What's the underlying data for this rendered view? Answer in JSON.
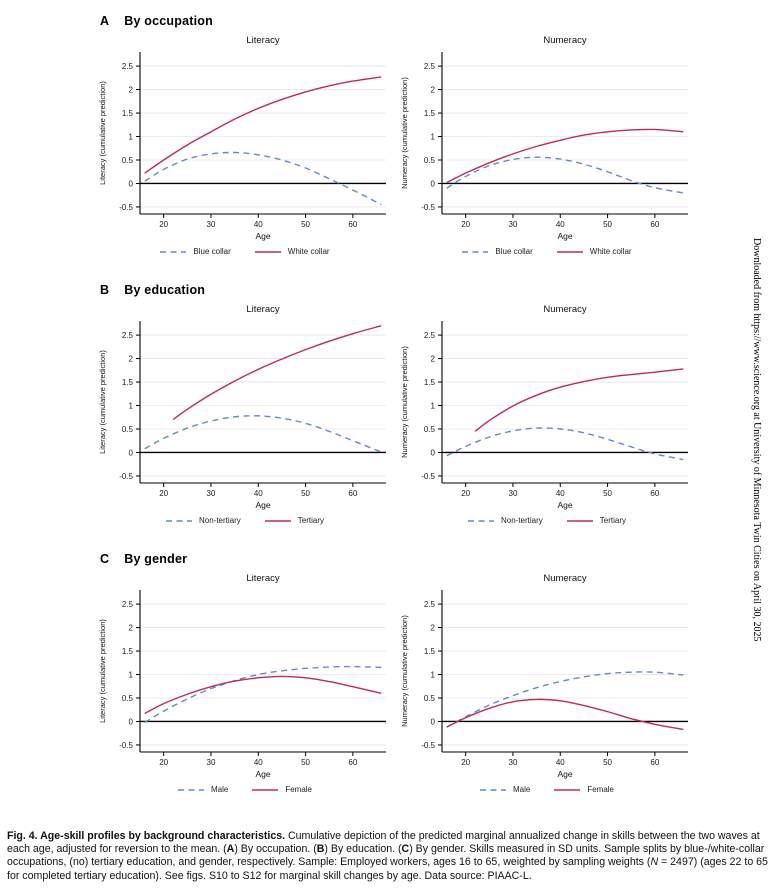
{
  "figure": {
    "panels": [
      {
        "letter": "A",
        "title": "By occupation"
      },
      {
        "letter": "B",
        "title": "By education"
      },
      {
        "letter": "C",
        "title": "By gender"
      }
    ]
  },
  "colors": {
    "series_blue": "#5b8ad6",
    "series_red": "#be2b55",
    "grid": "#e6e6e6",
    "axis": "#000000",
    "zero_line": "#000000"
  },
  "chart_data": [
    {
      "type": "line",
      "panel": "A",
      "title": "Literacy",
      "xlabel": "Age",
      "ylabel": "Literacy (cumulative prediction)",
      "xlim": [
        15,
        67
      ],
      "ylim": [
        -0.65,
        2.8
      ],
      "xticks": [
        20,
        30,
        40,
        50,
        60
      ],
      "yticks": [
        -0.5,
        0,
        0.5,
        1,
        1.5,
        2,
        2.5
      ],
      "grid": true,
      "legend_position": "bottom",
      "series": [
        {
          "name": "Blue collar",
          "style": "dashed",
          "color": "#5b8ad6",
          "points": [
            [
              16,
              0.05
            ],
            [
              20,
              0.3
            ],
            [
              25,
              0.52
            ],
            [
              30,
              0.63
            ],
            [
              35,
              0.66
            ],
            [
              40,
              0.61
            ],
            [
              45,
              0.5
            ],
            [
              50,
              0.33
            ],
            [
              55,
              0.1
            ],
            [
              60,
              -0.14
            ],
            [
              66,
              -0.45
            ]
          ]
        },
        {
          "name": "White collar",
          "style": "solid",
          "color": "#be2b55",
          "points": [
            [
              16,
              0.22
            ],
            [
              20,
              0.5
            ],
            [
              25,
              0.82
            ],
            [
              30,
              1.1
            ],
            [
              35,
              1.37
            ],
            [
              40,
              1.6
            ],
            [
              45,
              1.79
            ],
            [
              50,
              1.95
            ],
            [
              55,
              2.08
            ],
            [
              60,
              2.18
            ],
            [
              66,
              2.27
            ]
          ]
        }
      ]
    },
    {
      "type": "line",
      "panel": "A",
      "title": "Numeracy",
      "xlabel": "Age",
      "ylabel": "Numeracy (cumulative prediction)",
      "xlim": [
        15,
        67
      ],
      "ylim": [
        -0.65,
        2.8
      ],
      "xticks": [
        20,
        30,
        40,
        50,
        60
      ],
      "yticks": [
        -0.5,
        0,
        0.5,
        1,
        1.5,
        2,
        2.5
      ],
      "grid": true,
      "legend_position": "bottom",
      "series": [
        {
          "name": "Blue collar",
          "style": "dashed",
          "color": "#5b8ad6",
          "points": [
            [
              16,
              -0.1
            ],
            [
              20,
              0.15
            ],
            [
              25,
              0.38
            ],
            [
              30,
              0.51
            ],
            [
              35,
              0.56
            ],
            [
              40,
              0.52
            ],
            [
              45,
              0.41
            ],
            [
              50,
              0.25
            ],
            [
              55,
              0.06
            ],
            [
              60,
              -0.09
            ],
            [
              66,
              -0.2
            ]
          ]
        },
        {
          "name": "White collar",
          "style": "solid",
          "color": "#be2b55",
          "points": [
            [
              16,
              0.02
            ],
            [
              20,
              0.22
            ],
            [
              25,
              0.44
            ],
            [
              30,
              0.63
            ],
            [
              35,
              0.79
            ],
            [
              40,
              0.92
            ],
            [
              45,
              1.03
            ],
            [
              50,
              1.1
            ],
            [
              55,
              1.14
            ],
            [
              60,
              1.15
            ],
            [
              66,
              1.1
            ]
          ]
        }
      ]
    },
    {
      "type": "line",
      "panel": "B",
      "title": "Literacy",
      "xlabel": "Age",
      "ylabel": "Literacy (cumulative prediction)",
      "xlim": [
        15,
        67
      ],
      "ylim": [
        -0.65,
        2.8
      ],
      "xticks": [
        20,
        30,
        40,
        50,
        60
      ],
      "yticks": [
        -0.5,
        0,
        0.5,
        1,
        1.5,
        2,
        2.5
      ],
      "grid": true,
      "legend_position": "bottom",
      "series": [
        {
          "name": "Non-tertiary",
          "style": "dashed",
          "color": "#5b8ad6",
          "points": [
            [
              16,
              0.08
            ],
            [
              20,
              0.3
            ],
            [
              25,
              0.52
            ],
            [
              30,
              0.67
            ],
            [
              35,
              0.76
            ],
            [
              40,
              0.78
            ],
            [
              45,
              0.73
            ],
            [
              50,
              0.62
            ],
            [
              55,
              0.45
            ],
            [
              60,
              0.25
            ],
            [
              66,
              0.01
            ]
          ]
        },
        {
          "name": "Tertiary",
          "style": "solid",
          "color": "#be2b55",
          "points": [
            [
              22,
              0.7
            ],
            [
              25,
              0.92
            ],
            [
              30,
              1.24
            ],
            [
              35,
              1.52
            ],
            [
              40,
              1.77
            ],
            [
              45,
              1.99
            ],
            [
              50,
              2.19
            ],
            [
              55,
              2.37
            ],
            [
              60,
              2.53
            ],
            [
              66,
              2.7
            ]
          ]
        }
      ]
    },
    {
      "type": "line",
      "panel": "B",
      "title": "Numeracy",
      "xlabel": "Age",
      "ylabel": "Numeracy (cumulative prediction)",
      "xlim": [
        15,
        67
      ],
      "ylim": [
        -0.65,
        2.8
      ],
      "xticks": [
        20,
        30,
        40,
        50,
        60
      ],
      "yticks": [
        -0.5,
        0,
        0.5,
        1,
        1.5,
        2,
        2.5
      ],
      "grid": true,
      "legend_position": "bottom",
      "series": [
        {
          "name": "Non-tertiary",
          "style": "dashed",
          "color": "#5b8ad6",
          "points": [
            [
              16,
              -0.07
            ],
            [
              20,
              0.13
            ],
            [
              25,
              0.33
            ],
            [
              30,
              0.46
            ],
            [
              35,
              0.52
            ],
            [
              40,
              0.5
            ],
            [
              45,
              0.42
            ],
            [
              50,
              0.28
            ],
            [
              55,
              0.12
            ],
            [
              60,
              -0.03
            ],
            [
              66,
              -0.15
            ]
          ]
        },
        {
          "name": "Tertiary",
          "style": "solid",
          "color": "#be2b55",
          "points": [
            [
              22,
              0.45
            ],
            [
              25,
              0.68
            ],
            [
              30,
              0.99
            ],
            [
              35,
              1.22
            ],
            [
              40,
              1.39
            ],
            [
              45,
              1.51
            ],
            [
              50,
              1.6
            ],
            [
              55,
              1.66
            ],
            [
              60,
              1.71
            ],
            [
              66,
              1.78
            ]
          ]
        }
      ]
    },
    {
      "type": "line",
      "panel": "C",
      "title": "Literacy",
      "xlabel": "Age",
      "ylabel": "Literacy (cumulative prediction)",
      "xlim": [
        15,
        67
      ],
      "ylim": [
        -0.65,
        2.8
      ],
      "xticks": [
        20,
        30,
        40,
        50,
        60
      ],
      "yticks": [
        -0.5,
        0,
        0.5,
        1,
        1.5,
        2,
        2.5
      ],
      "grid": true,
      "legend_position": "bottom",
      "series": [
        {
          "name": "Male",
          "style": "dashed",
          "color": "#5b8ad6",
          "points": [
            [
              16,
              -0.02
            ],
            [
              20,
              0.22
            ],
            [
              25,
              0.48
            ],
            [
              30,
              0.7
            ],
            [
              35,
              0.87
            ],
            [
              40,
              1.0
            ],
            [
              45,
              1.08
            ],
            [
              50,
              1.13
            ],
            [
              55,
              1.16
            ],
            [
              60,
              1.17
            ],
            [
              66,
              1.15
            ]
          ]
        },
        {
          "name": "Female",
          "style": "solid",
          "color": "#be2b55",
          "points": [
            [
              16,
              0.17
            ],
            [
              20,
              0.38
            ],
            [
              25,
              0.58
            ],
            [
              30,
              0.74
            ],
            [
              35,
              0.86
            ],
            [
              40,
              0.93
            ],
            [
              45,
              0.96
            ],
            [
              50,
              0.93
            ],
            [
              55,
              0.85
            ],
            [
              60,
              0.74
            ],
            [
              66,
              0.6
            ]
          ]
        }
      ]
    },
    {
      "type": "line",
      "panel": "C",
      "title": "Numeracy",
      "xlabel": "Age",
      "ylabel": "Numeracy (cumulative prediction)",
      "xlim": [
        15,
        67
      ],
      "ylim": [
        -0.65,
        2.8
      ],
      "xticks": [
        20,
        30,
        40,
        50,
        60
      ],
      "yticks": [
        -0.5,
        0,
        0.5,
        1,
        1.5,
        2,
        2.5
      ],
      "grid": true,
      "legend_position": "bottom",
      "series": [
        {
          "name": "Male",
          "style": "dashed",
          "color": "#5b8ad6",
          "points": [
            [
              16,
              -0.12
            ],
            [
              20,
              0.1
            ],
            [
              25,
              0.35
            ],
            [
              30,
              0.55
            ],
            [
              35,
              0.72
            ],
            [
              40,
              0.85
            ],
            [
              45,
              0.95
            ],
            [
              50,
              1.02
            ],
            [
              55,
              1.05
            ],
            [
              60,
              1.05
            ],
            [
              66,
              0.99
            ]
          ]
        },
        {
          "name": "Female",
          "style": "solid",
          "color": "#be2b55",
          "points": [
            [
              16,
              -0.12
            ],
            [
              20,
              0.08
            ],
            [
              25,
              0.28
            ],
            [
              30,
              0.42
            ],
            [
              35,
              0.47
            ],
            [
              40,
              0.44
            ],
            [
              45,
              0.34
            ],
            [
              50,
              0.21
            ],
            [
              55,
              0.06
            ],
            [
              60,
              -0.06
            ],
            [
              66,
              -0.17
            ]
          ]
        }
      ]
    }
  ],
  "caption": {
    "segments": [
      {
        "style": "bold",
        "text": "Fig. 4. Age-skill profiles by background characteristics. "
      },
      {
        "style": "normal",
        "text": "Cumulative depiction of the predicted marginal annualized change in skills between the two waves at each age, adjusted for reversion to the mean. ("
      },
      {
        "style": "bold",
        "text": "A"
      },
      {
        "style": "normal",
        "text": ") By occupation. ("
      },
      {
        "style": "bold",
        "text": "B"
      },
      {
        "style": "normal",
        "text": ") By education. ("
      },
      {
        "style": "bold",
        "text": "C"
      },
      {
        "style": "normal",
        "text": ") By gender. Skills measured in SD units. Sample splits by blue-/white-collar occupations, (no) tertiary education, and gender, respectively. Sample: Employed workers, ages 16 to 65, weighted by sampling weights ("
      },
      {
        "style": "italic",
        "text": "N"
      },
      {
        "style": "normal",
        "text": " = 2497) (ages 22 to 65 for completed tertiary education). See figs. S10 to S12 for marginal skill changes by age. Data source: PIAAC-L."
      }
    ]
  },
  "sidebar": {
    "text": "Downloaded from https://www.science.org at University of Minnesota Twin Cities on April 30, 2025"
  }
}
